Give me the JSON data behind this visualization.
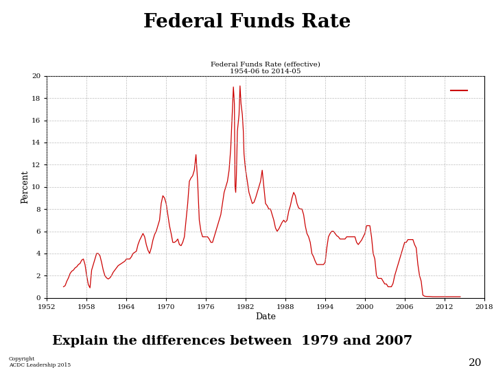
{
  "title": "Federal Funds Rate",
  "chart_title": "Federal Funds Rate (effective)\n1954-06 to 2014-05",
  "xlabel": "Date",
  "ylabel": "Percent",
  "xlim": [
    1952,
    2018
  ],
  "ylim": [
    0,
    20
  ],
  "xticks": [
    1952,
    1958,
    1964,
    1970,
    1976,
    1982,
    1988,
    1994,
    2000,
    2006,
    2012,
    2018
  ],
  "yticks": [
    0,
    2,
    4,
    6,
    8,
    10,
    12,
    14,
    16,
    18,
    20
  ],
  "line_color": "#cc0000",
  "background_color": "#ffffff",
  "subtitle_text": "Explain the differences between  1979 and 2007",
  "copyright_text": "Copyright\nACDC Leadership 2015",
  "page_number": "20",
  "legend_line_x": [
    2013.0,
    2015.5
  ],
  "legend_line_y": [
    18.7,
    18.7
  ],
  "ffr_data": [
    [
      1954.5,
      1.0
    ],
    [
      1954.75,
      1.1
    ],
    [
      1955.0,
      1.5
    ],
    [
      1955.25,
      1.8
    ],
    [
      1955.5,
      2.2
    ],
    [
      1955.75,
      2.4
    ],
    [
      1956.0,
      2.5
    ],
    [
      1956.25,
      2.7
    ],
    [
      1956.5,
      2.8
    ],
    [
      1956.75,
      3.0
    ],
    [
      1957.0,
      3.1
    ],
    [
      1957.25,
      3.4
    ],
    [
      1957.5,
      3.5
    ],
    [
      1957.75,
      3.0
    ],
    [
      1958.0,
      2.0
    ],
    [
      1958.25,
      1.2
    ],
    [
      1958.5,
      0.9
    ],
    [
      1958.75,
      2.5
    ],
    [
      1959.0,
      3.0
    ],
    [
      1959.25,
      3.5
    ],
    [
      1959.5,
      4.0
    ],
    [
      1959.75,
      4.0
    ],
    [
      1960.0,
      3.8
    ],
    [
      1960.25,
      3.2
    ],
    [
      1960.5,
      2.5
    ],
    [
      1960.75,
      2.0
    ],
    [
      1961.0,
      1.8
    ],
    [
      1961.25,
      1.7
    ],
    [
      1961.5,
      1.8
    ],
    [
      1961.75,
      2.0
    ],
    [
      1962.0,
      2.3
    ],
    [
      1962.25,
      2.5
    ],
    [
      1962.5,
      2.7
    ],
    [
      1962.75,
      2.9
    ],
    [
      1963.0,
      3.0
    ],
    [
      1963.25,
      3.1
    ],
    [
      1963.5,
      3.2
    ],
    [
      1963.75,
      3.3
    ],
    [
      1964.0,
      3.5
    ],
    [
      1964.25,
      3.5
    ],
    [
      1964.5,
      3.5
    ],
    [
      1964.75,
      3.7
    ],
    [
      1965.0,
      4.0
    ],
    [
      1965.25,
      4.1
    ],
    [
      1965.5,
      4.2
    ],
    [
      1965.75,
      4.8
    ],
    [
      1966.0,
      5.2
    ],
    [
      1966.25,
      5.5
    ],
    [
      1966.5,
      5.8
    ],
    [
      1966.75,
      5.5
    ],
    [
      1967.0,
      4.8
    ],
    [
      1967.25,
      4.3
    ],
    [
      1967.5,
      4.0
    ],
    [
      1967.75,
      4.5
    ],
    [
      1968.0,
      5.2
    ],
    [
      1968.25,
      5.7
    ],
    [
      1968.5,
      6.0
    ],
    [
      1968.75,
      6.5
    ],
    [
      1969.0,
      7.0
    ],
    [
      1969.25,
      8.5
    ],
    [
      1969.5,
      9.2
    ],
    [
      1969.75,
      9.0
    ],
    [
      1970.0,
      8.5
    ],
    [
      1970.25,
      7.5
    ],
    [
      1970.5,
      6.5
    ],
    [
      1970.75,
      5.8
    ],
    [
      1971.0,
      5.0
    ],
    [
      1971.25,
      5.0
    ],
    [
      1971.5,
      5.1
    ],
    [
      1971.75,
      5.3
    ],
    [
      1972.0,
      4.8
    ],
    [
      1972.25,
      4.7
    ],
    [
      1972.5,
      5.0
    ],
    [
      1972.75,
      5.5
    ],
    [
      1973.0,
      7.0
    ],
    [
      1973.25,
      8.5
    ],
    [
      1973.5,
      10.5
    ],
    [
      1973.75,
      10.8
    ],
    [
      1974.0,
      11.0
    ],
    [
      1974.25,
      11.5
    ],
    [
      1974.5,
      12.9
    ],
    [
      1974.75,
      10.5
    ],
    [
      1975.0,
      7.0
    ],
    [
      1975.25,
      6.0
    ],
    [
      1975.5,
      5.5
    ],
    [
      1975.75,
      5.5
    ],
    [
      1976.0,
      5.5
    ],
    [
      1976.25,
      5.5
    ],
    [
      1976.5,
      5.3
    ],
    [
      1976.75,
      5.0
    ],
    [
      1977.0,
      5.0
    ],
    [
      1977.25,
      5.5
    ],
    [
      1977.5,
      6.0
    ],
    [
      1977.75,
      6.5
    ],
    [
      1978.0,
      7.0
    ],
    [
      1978.25,
      7.5
    ],
    [
      1978.5,
      8.5
    ],
    [
      1978.75,
      9.5
    ],
    [
      1979.0,
      10.0
    ],
    [
      1979.25,
      10.5
    ],
    [
      1979.5,
      11.5
    ],
    [
      1979.75,
      13.5
    ],
    [
      1980.0,
      17.0
    ],
    [
      1980.15,
      19.0
    ],
    [
      1980.3,
      17.5
    ],
    [
      1980.4,
      10.0
    ],
    [
      1980.5,
      9.5
    ],
    [
      1980.6,
      11.0
    ],
    [
      1980.75,
      15.0
    ],
    [
      1981.0,
      16.5
    ],
    [
      1981.15,
      19.1
    ],
    [
      1981.3,
      17.5
    ],
    [
      1981.5,
      16.5
    ],
    [
      1981.65,
      15.0
    ],
    [
      1981.75,
      13.0
    ],
    [
      1981.9,
      12.0
    ],
    [
      1982.0,
      11.5
    ],
    [
      1982.25,
      10.5
    ],
    [
      1982.5,
      9.5
    ],
    [
      1982.75,
      9.0
    ],
    [
      1983.0,
      8.5
    ],
    [
      1983.25,
      8.6
    ],
    [
      1983.5,
      9.0
    ],
    [
      1983.75,
      9.5
    ],
    [
      1984.0,
      10.0
    ],
    [
      1984.25,
      10.5
    ],
    [
      1984.5,
      11.5
    ],
    [
      1984.75,
      10.0
    ],
    [
      1985.0,
      8.5
    ],
    [
      1985.25,
      8.3
    ],
    [
      1985.5,
      8.0
    ],
    [
      1985.75,
      8.0
    ],
    [
      1986.0,
      7.5
    ],
    [
      1986.25,
      7.0
    ],
    [
      1986.5,
      6.3
    ],
    [
      1986.75,
      6.0
    ],
    [
      1987.0,
      6.2
    ],
    [
      1987.25,
      6.5
    ],
    [
      1987.5,
      6.8
    ],
    [
      1987.75,
      7.0
    ],
    [
      1988.0,
      6.8
    ],
    [
      1988.25,
      7.0
    ],
    [
      1988.5,
      7.8
    ],
    [
      1988.75,
      8.3
    ],
    [
      1989.0,
      9.0
    ],
    [
      1989.25,
      9.5
    ],
    [
      1989.5,
      9.2
    ],
    [
      1989.75,
      8.5
    ],
    [
      1990.0,
      8.1
    ],
    [
      1990.25,
      8.0
    ],
    [
      1990.5,
      8.0
    ],
    [
      1990.75,
      7.5
    ],
    [
      1991.0,
      6.5
    ],
    [
      1991.25,
      5.8
    ],
    [
      1991.5,
      5.5
    ],
    [
      1991.75,
      5.0
    ],
    [
      1992.0,
      4.0
    ],
    [
      1992.25,
      3.7
    ],
    [
      1992.5,
      3.3
    ],
    [
      1992.75,
      3.0
    ],
    [
      1993.0,
      3.0
    ],
    [
      1993.25,
      3.0
    ],
    [
      1993.5,
      3.0
    ],
    [
      1993.75,
      3.0
    ],
    [
      1994.0,
      3.2
    ],
    [
      1994.25,
      4.5
    ],
    [
      1994.5,
      5.5
    ],
    [
      1994.75,
      5.8
    ],
    [
      1995.0,
      6.0
    ],
    [
      1995.25,
      6.0
    ],
    [
      1995.5,
      5.8
    ],
    [
      1995.75,
      5.6
    ],
    [
      1996.0,
      5.5
    ],
    [
      1996.25,
      5.3
    ],
    [
      1996.5,
      5.3
    ],
    [
      1996.75,
      5.3
    ],
    [
      1997.0,
      5.3
    ],
    [
      1997.25,
      5.5
    ],
    [
      1997.5,
      5.5
    ],
    [
      1997.75,
      5.5
    ],
    [
      1998.0,
      5.5
    ],
    [
      1998.25,
      5.5
    ],
    [
      1998.5,
      5.5
    ],
    [
      1998.75,
      5.0
    ],
    [
      1999.0,
      4.8
    ],
    [
      1999.25,
      5.0
    ],
    [
      1999.5,
      5.2
    ],
    [
      1999.75,
      5.5
    ],
    [
      2000.0,
      5.8
    ],
    [
      2000.25,
      6.5
    ],
    [
      2000.5,
      6.5
    ],
    [
      2000.75,
      6.5
    ],
    [
      2001.0,
      5.5
    ],
    [
      2001.25,
      4.0
    ],
    [
      2001.5,
      3.5
    ],
    [
      2001.75,
      2.0
    ],
    [
      2002.0,
      1.75
    ],
    [
      2002.25,
      1.75
    ],
    [
      2002.5,
      1.75
    ],
    [
      2002.75,
      1.5
    ],
    [
      2003.0,
      1.25
    ],
    [
      2003.25,
      1.25
    ],
    [
      2003.5,
      1.0
    ],
    [
      2003.75,
      1.0
    ],
    [
      2004.0,
      1.0
    ],
    [
      2004.25,
      1.3
    ],
    [
      2004.5,
      2.0
    ],
    [
      2004.75,
      2.5
    ],
    [
      2005.0,
      3.0
    ],
    [
      2005.25,
      3.5
    ],
    [
      2005.5,
      4.0
    ],
    [
      2005.75,
      4.5
    ],
    [
      2006.0,
      5.0
    ],
    [
      2006.25,
      5.0
    ],
    [
      2006.5,
      5.25
    ],
    [
      2006.75,
      5.25
    ],
    [
      2007.0,
      5.25
    ],
    [
      2007.25,
      5.25
    ],
    [
      2007.5,
      4.8
    ],
    [
      2007.75,
      4.5
    ],
    [
      2008.0,
      3.0
    ],
    [
      2008.25,
      2.0
    ],
    [
      2008.5,
      1.5
    ],
    [
      2008.75,
      0.25
    ],
    [
      2009.0,
      0.15
    ],
    [
      2009.25,
      0.13
    ],
    [
      2009.5,
      0.12
    ],
    [
      2009.75,
      0.12
    ],
    [
      2010.0,
      0.11
    ],
    [
      2010.25,
      0.1
    ],
    [
      2010.5,
      0.1
    ],
    [
      2010.75,
      0.1
    ],
    [
      2011.0,
      0.1
    ],
    [
      2011.25,
      0.1
    ],
    [
      2011.5,
      0.1
    ],
    [
      2011.75,
      0.1
    ],
    [
      2012.0,
      0.1
    ],
    [
      2012.25,
      0.1
    ],
    [
      2012.5,
      0.1
    ],
    [
      2012.75,
      0.1
    ],
    [
      2013.0,
      0.1
    ],
    [
      2013.25,
      0.1
    ],
    [
      2013.5,
      0.1
    ],
    [
      2013.75,
      0.1
    ],
    [
      2014.0,
      0.1
    ],
    [
      2014.4,
      0.1
    ]
  ]
}
